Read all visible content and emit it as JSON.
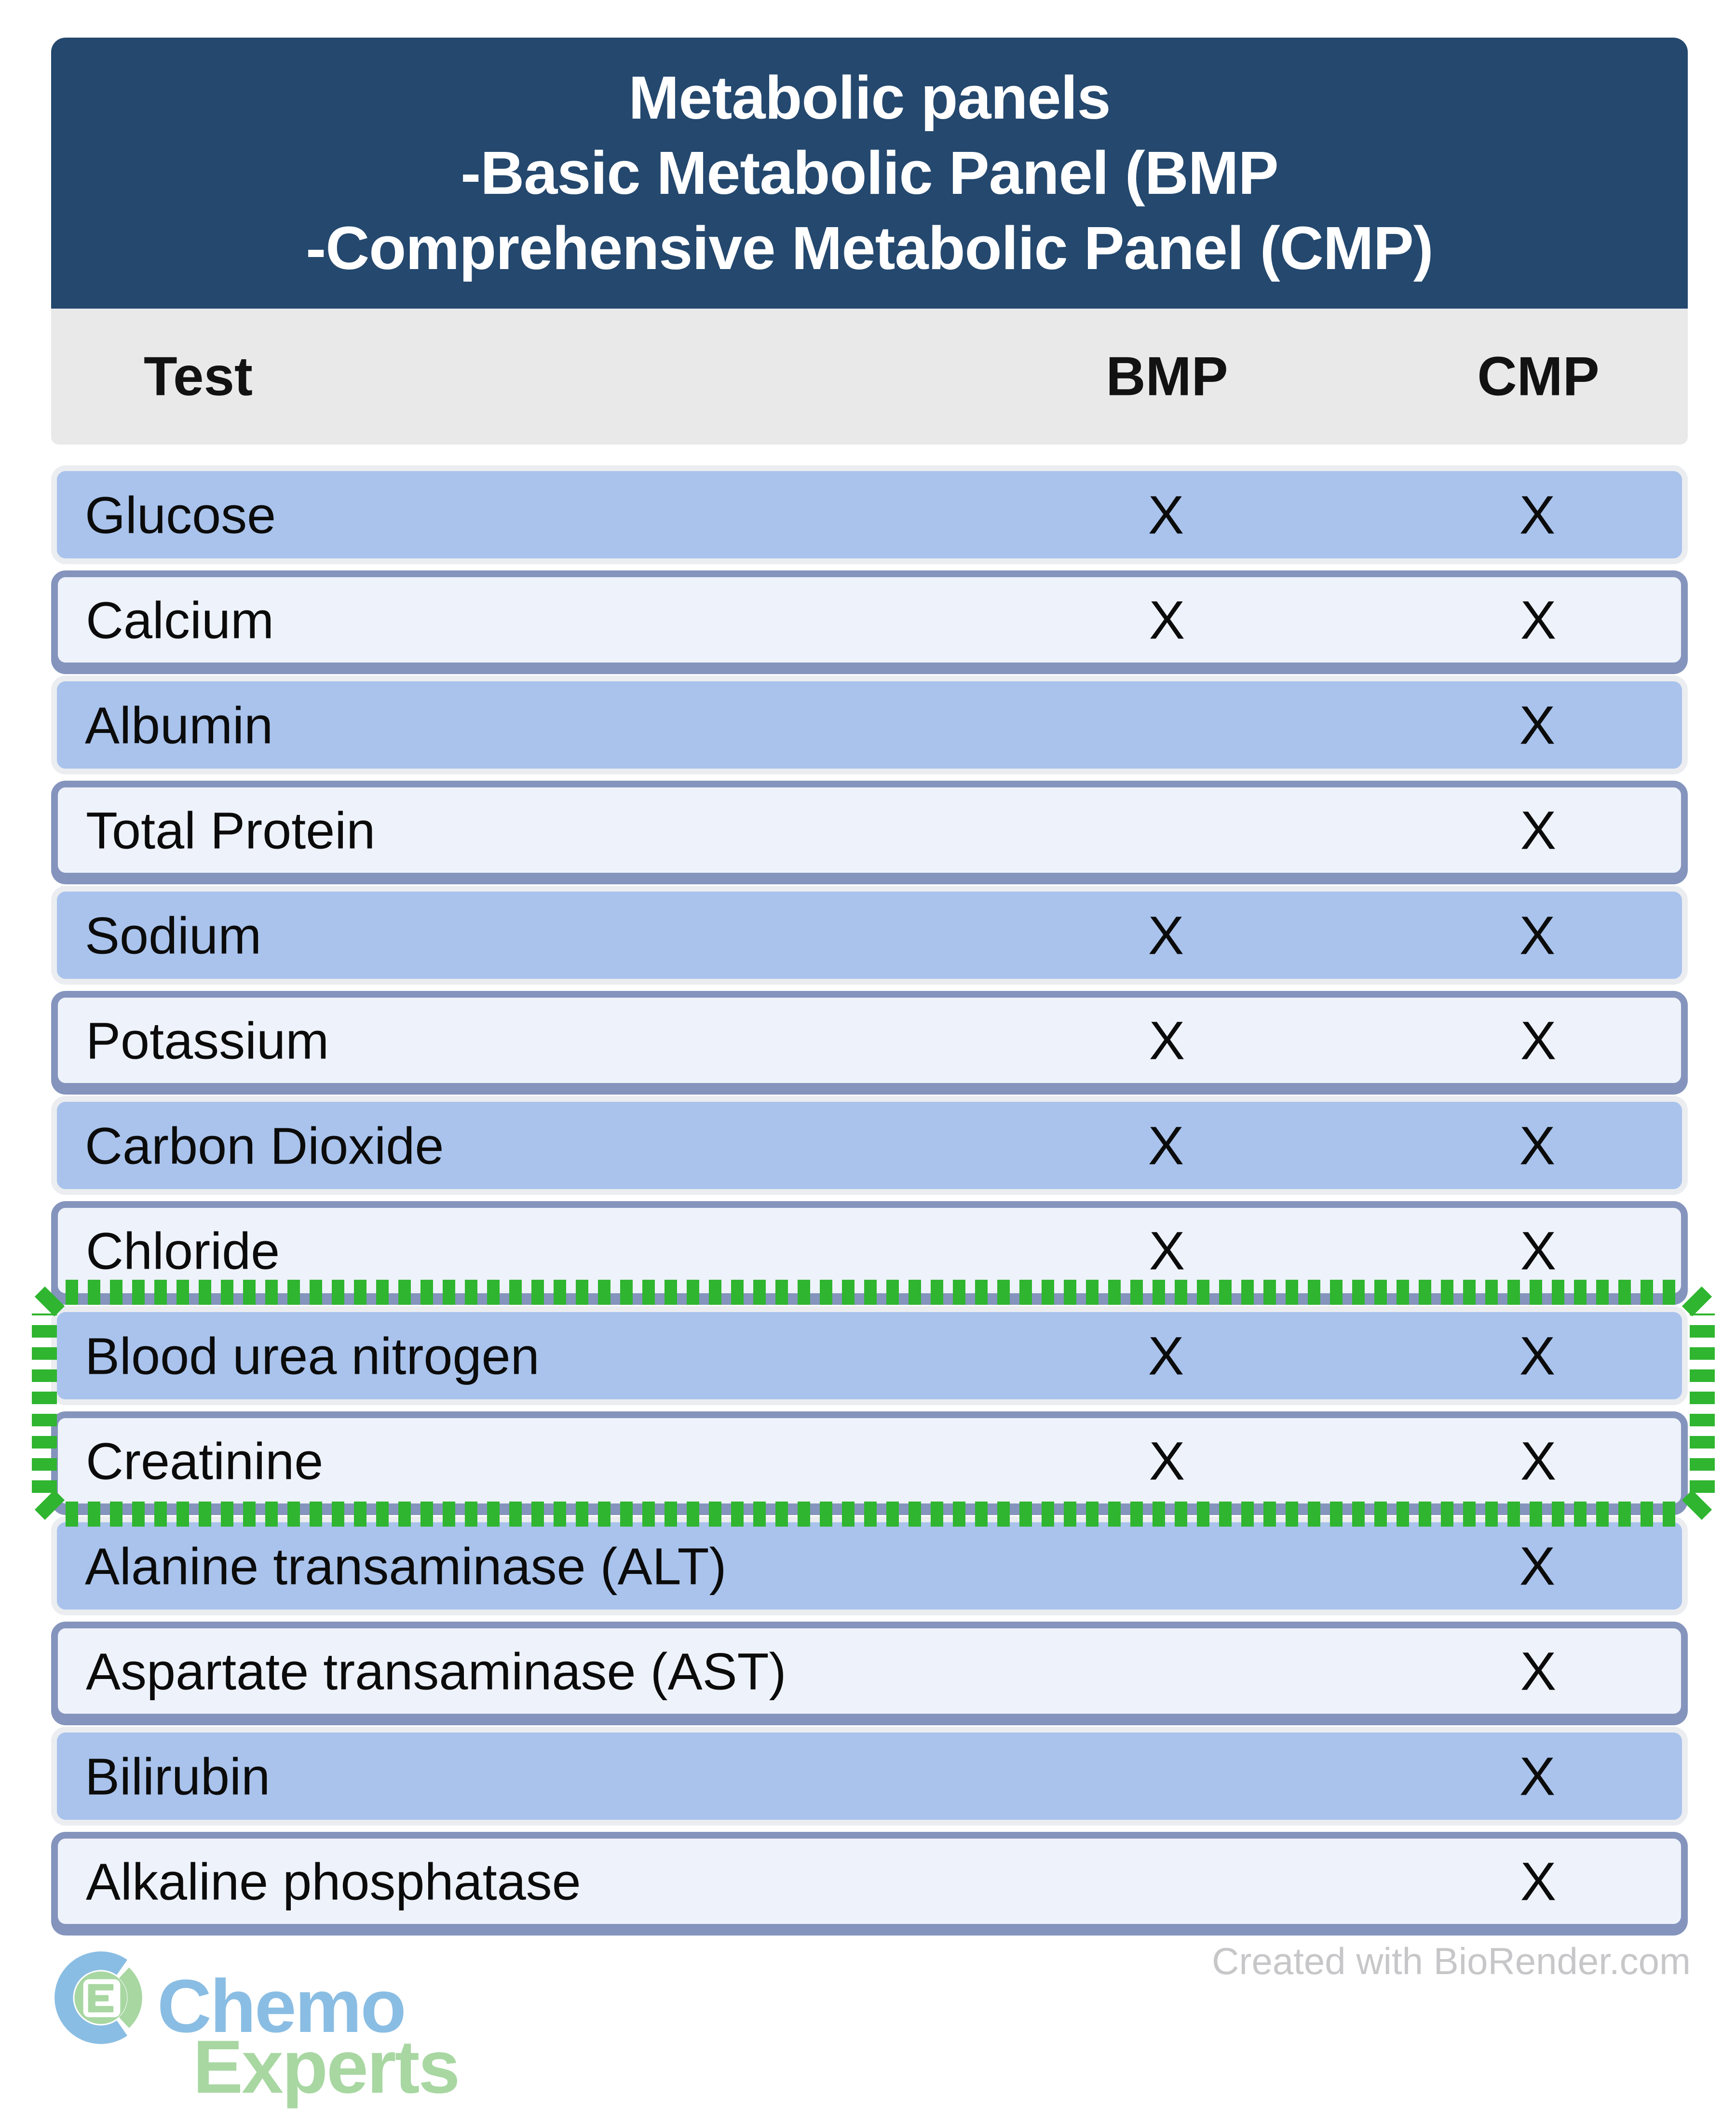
{
  "header": {
    "title_lines": [
      "Metabolic panels",
      "-Basic Metabolic Panel (BMP",
      "-Comprehensive Metabolic Panel (CMP)"
    ]
  },
  "table": {
    "columns": {
      "test": "Test",
      "bmp": "BMP",
      "cmp": "CMP"
    },
    "rows": [
      {
        "test": "Glucose",
        "bmp": "X",
        "cmp": "X"
      },
      {
        "test": "Calcium",
        "bmp": "X",
        "cmp": "X"
      },
      {
        "test": "Albumin",
        "bmp": "",
        "cmp": "X"
      },
      {
        "test": "Total Protein",
        "bmp": "",
        "cmp": "X"
      },
      {
        "test": "Sodium",
        "bmp": "X",
        "cmp": "X"
      },
      {
        "test": "Potassium",
        "bmp": "X",
        "cmp": "X"
      },
      {
        "test": "Carbon Dioxide",
        "bmp": "X",
        "cmp": "X"
      },
      {
        "test": "Chloride",
        "bmp": "X",
        "cmp": "X"
      },
      {
        "test": "Blood urea nitrogen",
        "bmp": "X",
        "cmp": "X"
      },
      {
        "test": "Creatinine",
        "bmp": "X",
        "cmp": "X"
      },
      {
        "test": "Alanine transaminase (ALT)",
        "bmp": "",
        "cmp": "X"
      },
      {
        "test": "Aspartate transaminase (AST)",
        "bmp": "",
        "cmp": "X"
      },
      {
        "test": "Bilirubin",
        "bmp": "",
        "cmp": "X"
      },
      {
        "test": "Alkaline phosphatase",
        "bmp": "",
        "cmp": "X"
      }
    ],
    "highlighted_rows": [
      "Blood urea nitrogen",
      "Creatinine"
    ]
  },
  "footer": {
    "credit": "Created with BioRender.com",
    "logo": {
      "line1": "Chemo",
      "line2": "Experts"
    }
  },
  "colors": {
    "header_bg": "#24486E",
    "column_header_bg": "#E9E9EA",
    "row_blue": "#A9C3EC",
    "row_light": "#EEF2FB",
    "row_border": "#8494BD",
    "highlight_green": "#2FB52F",
    "credit_gray": "#C7C7C9",
    "logo_blue": "#8ABDE3",
    "logo_green": "#A8D7A2"
  }
}
